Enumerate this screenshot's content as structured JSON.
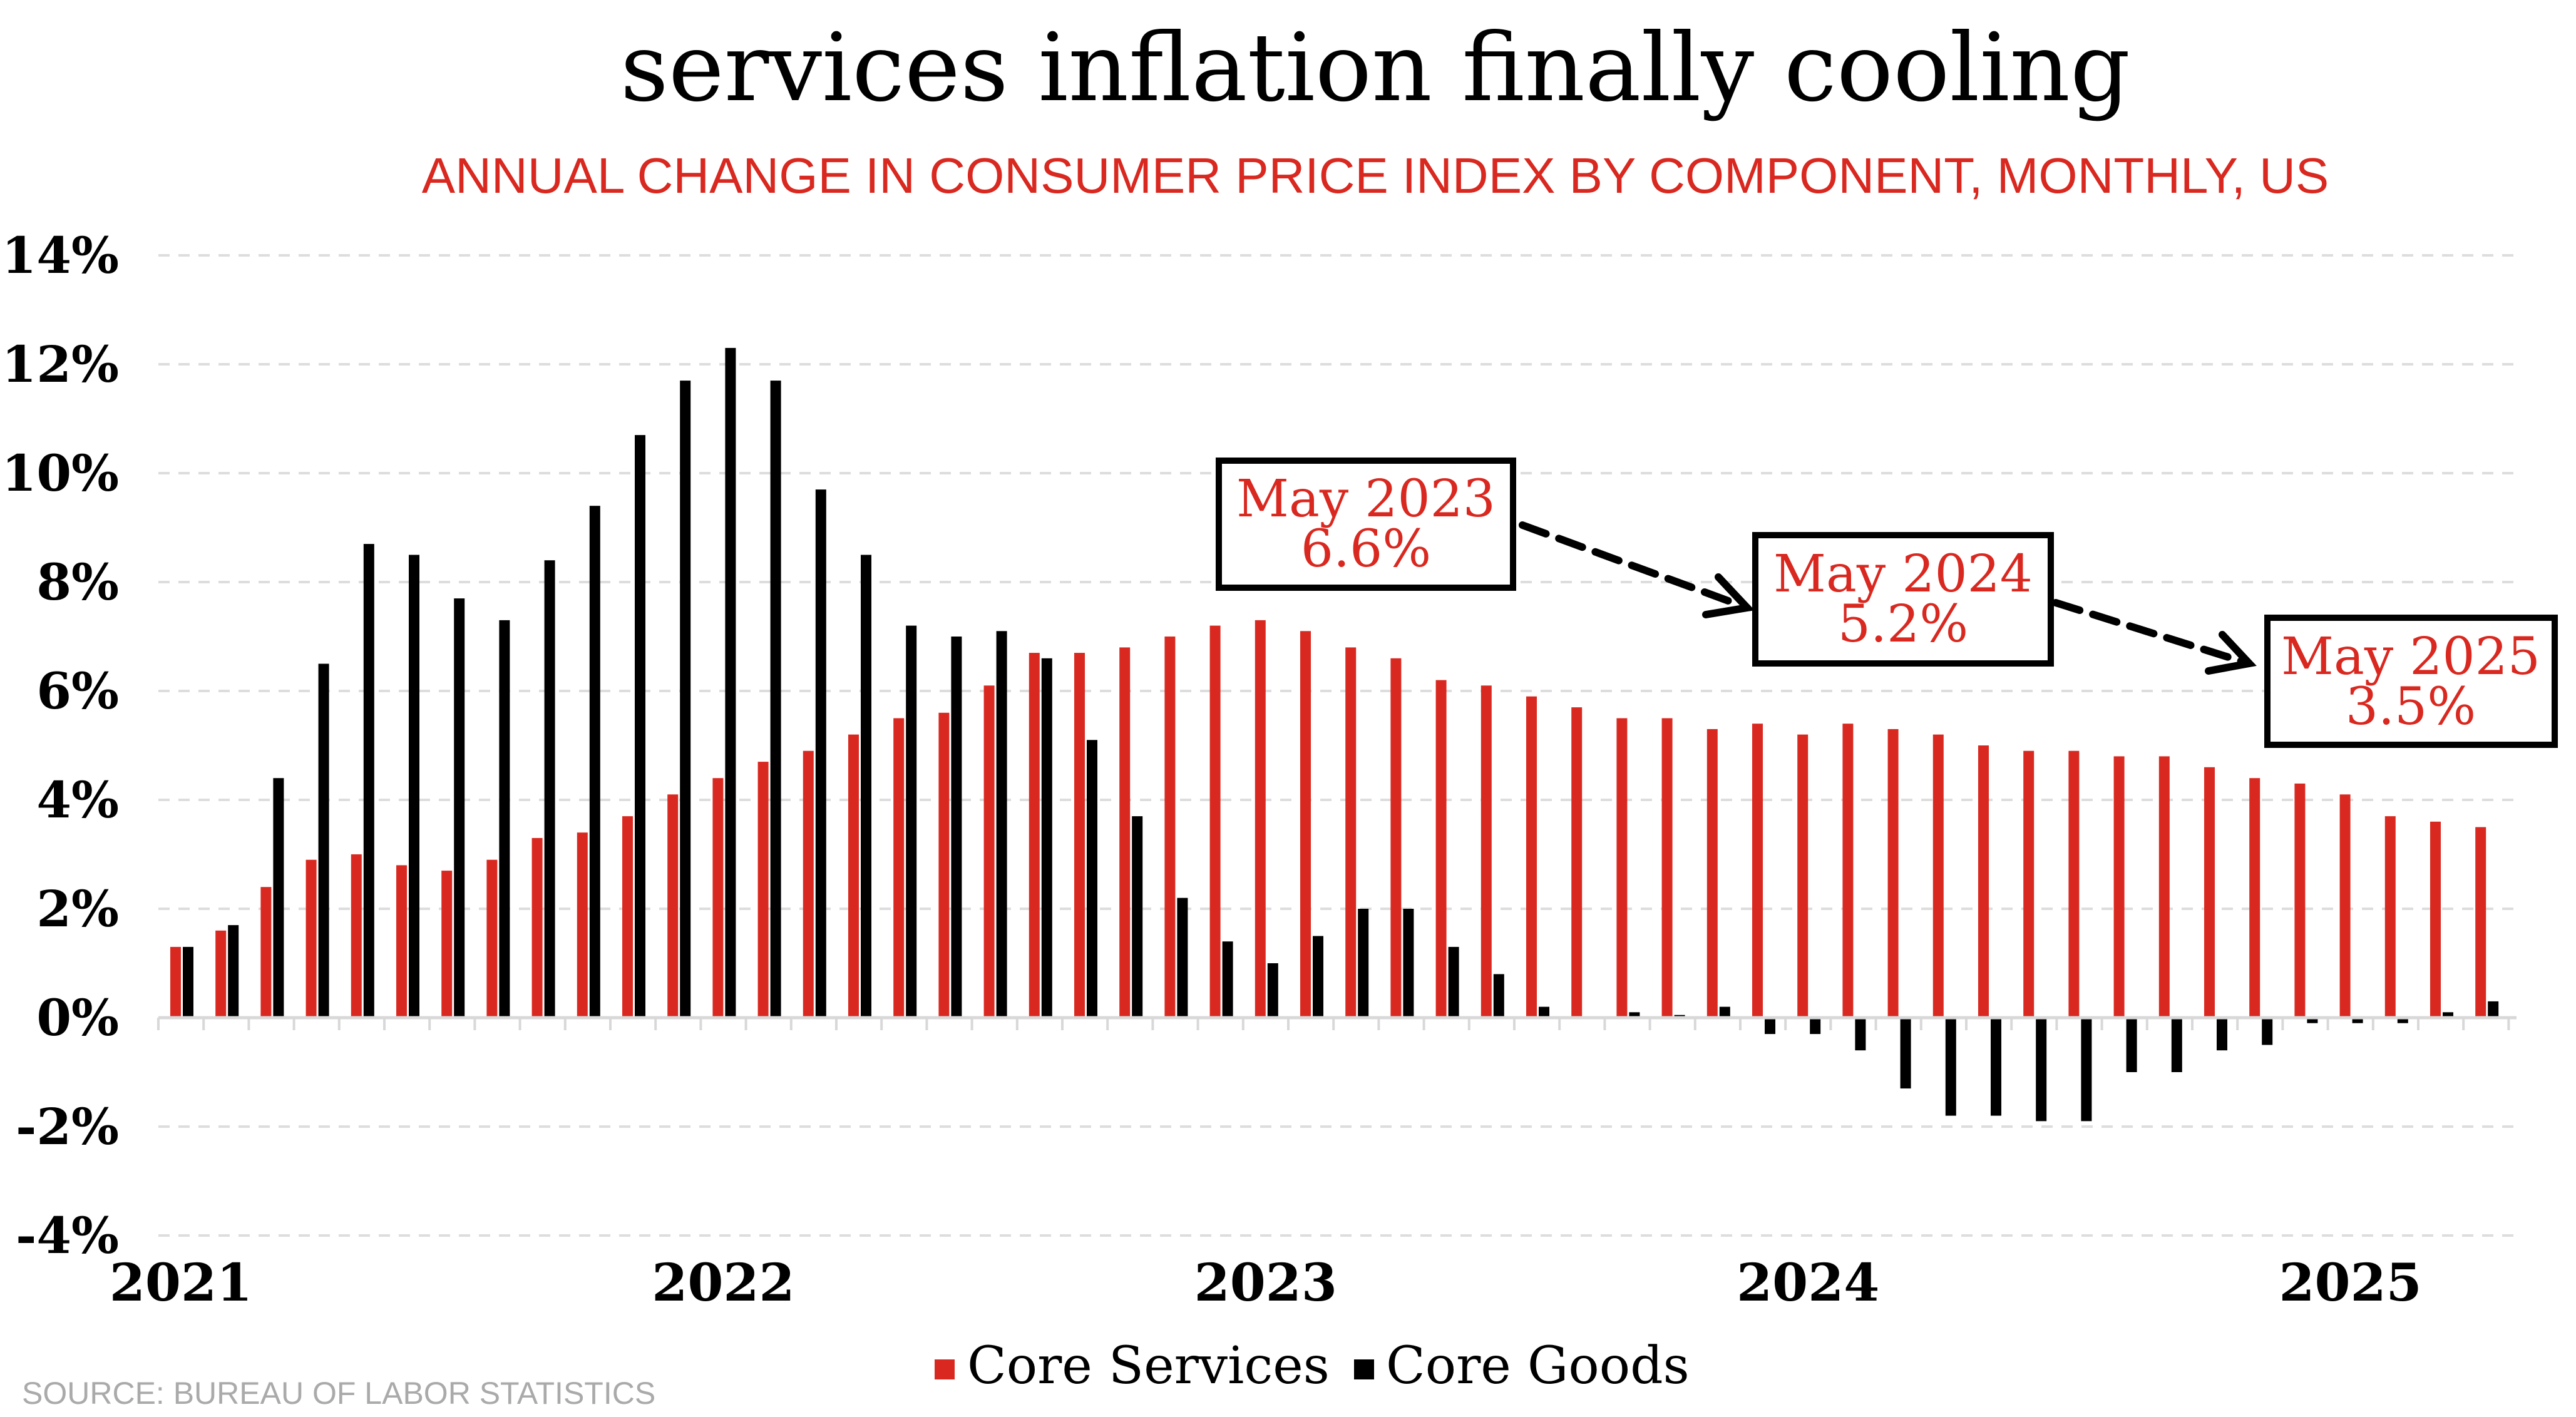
{
  "chart_data": {
    "type": "bar",
    "title": "services inflation finally cooling",
    "subtitle": "ANNUAL CHANGE IN CONSUMER PRICE INDEX BY COMPONENT, MONTHLY, US",
    "source": "SOURCE: BUREAU OF LABOR STATISTICS",
    "xlabel": "",
    "ylabel": "",
    "ylim": [
      -4,
      14
    ],
    "y_ticks": [
      -4,
      -2,
      0,
      2,
      4,
      6,
      8,
      10,
      12,
      14
    ],
    "y_tick_labels": [
      "-4%",
      "-2%",
      "0%",
      "2%",
      "4%",
      "6%",
      "8%",
      "10%",
      "12%",
      "14%"
    ],
    "x_tick_labels": [
      "2021",
      "2022",
      "2023",
      "2024",
      "2025"
    ],
    "grid": true,
    "legend_position": "bottom-center",
    "x": [
      "2021-02",
      "2021-03",
      "2021-04",
      "2021-05",
      "2021-06",
      "2021-07",
      "2021-08",
      "2021-09",
      "2021-10",
      "2021-11",
      "2021-12",
      "2022-01",
      "2022-02",
      "2022-03",
      "2022-04",
      "2022-05",
      "2022-06",
      "2022-07",
      "2022-08",
      "2022-09",
      "2022-10",
      "2022-11",
      "2022-12",
      "2023-01",
      "2023-02",
      "2023-03",
      "2023-04",
      "2023-05",
      "2023-06",
      "2023-07",
      "2023-08",
      "2023-09",
      "2023-10",
      "2023-11",
      "2023-12",
      "2024-01",
      "2024-02",
      "2024-03",
      "2024-04",
      "2024-05",
      "2024-06",
      "2024-07",
      "2024-08",
      "2024-09",
      "2024-10",
      "2024-11",
      "2024-12",
      "2025-01",
      "2025-02",
      "2025-03",
      "2025-04",
      "2025-05"
    ],
    "series": [
      {
        "name": "Core Services",
        "color": "#d9281f",
        "values": [
          1.3,
          1.6,
          2.4,
          2.9,
          3.0,
          2.8,
          2.7,
          2.9,
          3.3,
          3.4,
          3.7,
          4.1,
          4.4,
          4.7,
          4.9,
          5.2,
          5.5,
          5.6,
          6.1,
          6.7,
          6.7,
          6.8,
          7.0,
          7.2,
          7.3,
          7.1,
          6.8,
          6.6,
          6.2,
          6.1,
          5.9,
          5.7,
          5.5,
          5.5,
          5.3,
          5.4,
          5.2,
          5.4,
          5.3,
          5.2,
          5.0,
          4.9,
          4.9,
          4.8,
          4.8,
          4.6,
          4.4,
          4.3,
          4.1,
          3.7,
          3.6,
          3.5
        ]
      },
      {
        "name": "Core Goods",
        "color": "#000000",
        "values": [
          1.3,
          1.7,
          4.4,
          6.5,
          8.7,
          8.5,
          7.7,
          7.3,
          8.4,
          9.4,
          10.7,
          11.7,
          12.3,
          11.7,
          9.7,
          8.5,
          7.2,
          7.0,
          7.1,
          6.6,
          5.1,
          3.7,
          2.2,
          1.4,
          1.0,
          1.5,
          2.0,
          2.0,
          1.3,
          0.8,
          0.2,
          0.0,
          0.1,
          0.05,
          0.2,
          -0.3,
          -0.3,
          -0.6,
          -1.3,
          -1.8,
          -1.8,
          -1.9,
          -1.9,
          -1.0,
          -1.0,
          -0.6,
          -0.5,
          -0.1,
          -0.1,
          -0.1,
          0.1,
          0.3
        ]
      }
    ],
    "annotations": [
      {
        "month": "2023-05",
        "line1": "May 2023",
        "line2": "6.6%"
      },
      {
        "month": "2024-05",
        "line1": "May 2024",
        "line2": "5.2%"
      },
      {
        "month": "2025-05",
        "line1": "May 2025",
        "line2": "3.5%"
      }
    ]
  }
}
